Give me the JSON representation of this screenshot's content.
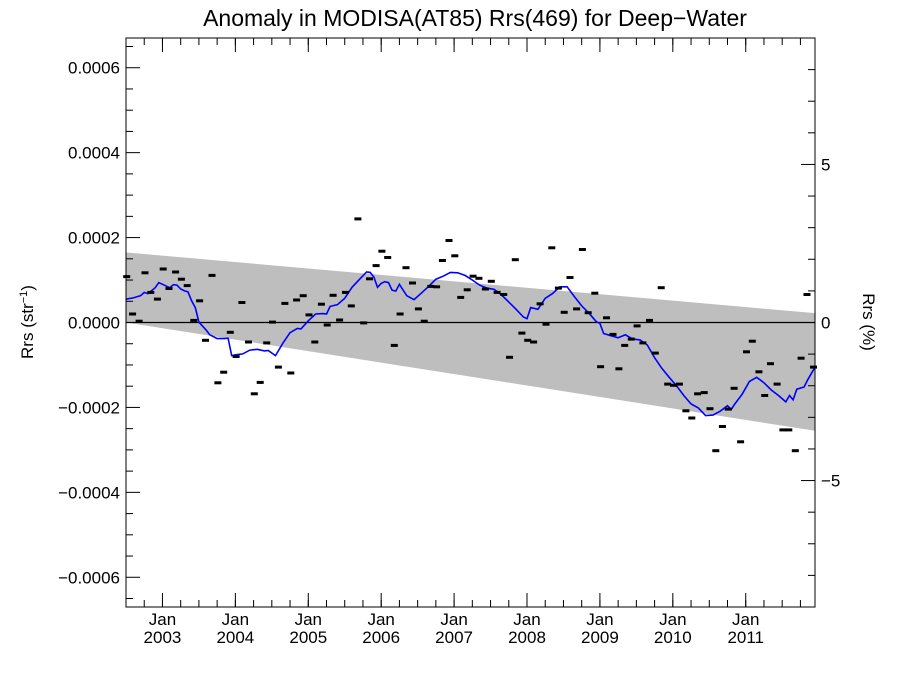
{
  "chart_data": {
    "type": "scatter",
    "title": "Anomaly in MODISA(AT85) Rrs(469) for Deep−Water",
    "ylabel": "Rrs (str⁻¹)",
    "y2label": "Rrs (%)",
    "xlabel": "",
    "xlim": [
      2002.5,
      2011.95
    ],
    "ylim": [
      -0.00067,
      0.00067
    ],
    "y2lim": [
      -9.0,
      9.0
    ],
    "grid": false,
    "legend": "none",
    "yticks": [
      -0.0006,
      -0.0004,
      -0.0002,
      0.0,
      0.0002,
      0.0004,
      0.0006
    ],
    "ytick_labels": [
      "−0.0006",
      "−0.0004",
      "−0.0002",
      "0.0000",
      "0.0002",
      "0.0004",
      "0.0006"
    ],
    "y2ticks": [
      -5,
      0,
      5
    ],
    "y2tick_labels": [
      "−5",
      "0",
      "5"
    ],
    "xticks": [
      {
        "x": 2003.0,
        "month": "Jan",
        "year": "2003"
      },
      {
        "x": 2004.0,
        "month": "Jan",
        "year": "2004"
      },
      {
        "x": 2005.0,
        "month": "Jan",
        "year": "2005"
      },
      {
        "x": 2006.0,
        "month": "Jan",
        "year": "2006"
      },
      {
        "x": 2007.0,
        "month": "Jan",
        "year": "2007"
      },
      {
        "x": 2008.0,
        "month": "Jan",
        "year": "2008"
      },
      {
        "x": 2009.0,
        "month": "Jan",
        "year": "2009"
      },
      {
        "x": 2010.0,
        "month": "Jan",
        "year": "2010"
      },
      {
        "x": 2011.0,
        "month": "Jan",
        "year": "2011"
      }
    ],
    "band": {
      "x": [
        2002.5,
        2011.95
      ],
      "upper": [
        0.000165,
        2.2e-05
      ],
      "lower": [
        0.0,
        -0.000255
      ]
    },
    "colors": {
      "band": "#bebebe",
      "smooth": "#0000ff",
      "points": "#000000",
      "zero_line": "#000000"
    },
    "monthly_anomaly": [
      {
        "x": 2002.51,
        "y": 0.000108
      },
      {
        "x": 2002.59,
        "y": 2e-05
      },
      {
        "x": 2002.68,
        "y": 3e-06
      },
      {
        "x": 2002.76,
        "y": 0.000117
      },
      {
        "x": 2002.84,
        "y": 7.1e-05
      },
      {
        "x": 2002.93,
        "y": 5.5e-05
      },
      {
        "x": 2003.01,
        "y": 0.000126
      },
      {
        "x": 2003.09,
        "y": 8e-05
      },
      {
        "x": 2003.18,
        "y": 0.000119
      },
      {
        "x": 2003.26,
        "y": 0.000102
      },
      {
        "x": 2003.34,
        "y": 8.7e-05
      },
      {
        "x": 2003.43,
        "y": 5e-06
      },
      {
        "x": 2003.51,
        "y": 5.1e-05
      },
      {
        "x": 2003.59,
        "y": -4.2e-05
      },
      {
        "x": 2003.68,
        "y": 0.000111
      },
      {
        "x": 2003.76,
        "y": -0.000142
      },
      {
        "x": 2003.84,
        "y": -0.000117
      },
      {
        "x": 2003.93,
        "y": -2.3e-05
      },
      {
        "x": 2004.01,
        "y": -8e-05
      },
      {
        "x": 2004.09,
        "y": 4.7e-05
      },
      {
        "x": 2004.18,
        "y": -4.6e-05
      },
      {
        "x": 2004.26,
        "y": -0.000168
      },
      {
        "x": 2004.34,
        "y": -0.000141
      },
      {
        "x": 2004.43,
        "y": -4.8e-05
      },
      {
        "x": 2004.51,
        "y": 1e-06
      },
      {
        "x": 2004.59,
        "y": -0.000105
      },
      {
        "x": 2004.68,
        "y": 4.5e-05
      },
      {
        "x": 2004.76,
        "y": -0.000119
      },
      {
        "x": 2004.84,
        "y": 5.3e-05
      },
      {
        "x": 2004.93,
        "y": 6.3e-05
      },
      {
        "x": 2005.01,
        "y": 1.8e-05
      },
      {
        "x": 2005.09,
        "y": -4.6e-05
      },
      {
        "x": 2005.18,
        "y": 4.3e-05
      },
      {
        "x": 2005.26,
        "y": -6e-06
      },
      {
        "x": 2005.34,
        "y": 6.4e-05
      },
      {
        "x": 2005.43,
        "y": 6e-06
      },
      {
        "x": 2005.51,
        "y": 7.1e-05
      },
      {
        "x": 2005.59,
        "y": 3.9e-05
      },
      {
        "x": 2005.68,
        "y": 0.000244
      },
      {
        "x": 2005.76,
        "y": -1e-06
      },
      {
        "x": 2005.84,
        "y": 0.000103
      },
      {
        "x": 2005.93,
        "y": 0.000134
      },
      {
        "x": 2006.01,
        "y": 0.000168
      },
      {
        "x": 2006.09,
        "y": 0.000153
      },
      {
        "x": 2006.18,
        "y": -5.4e-05
      },
      {
        "x": 2006.26,
        "y": 2e-05
      },
      {
        "x": 2006.34,
        "y": 0.000129
      },
      {
        "x": 2006.43,
        "y": 9.3e-05
      },
      {
        "x": 2006.51,
        "y": 3.2e-05
      },
      {
        "x": 2006.59,
        "y": 3e-06
      },
      {
        "x": 2006.68,
        "y": 8.5e-05
      },
      {
        "x": 2006.76,
        "y": 8.4e-05
      },
      {
        "x": 2006.84,
        "y": 0.000146
      },
      {
        "x": 2006.93,
        "y": 0.000193
      },
      {
        "x": 2007.01,
        "y": 0.000157
      },
      {
        "x": 2007.09,
        "y": 5.9e-05
      },
      {
        "x": 2007.18,
        "y": 7.7e-05
      },
      {
        "x": 2007.26,
        "y": 0.000109
      },
      {
        "x": 2007.34,
        "y": 0.000104
      },
      {
        "x": 2007.43,
        "y": 7.9e-05
      },
      {
        "x": 2007.51,
        "y": 9.7e-05
      },
      {
        "x": 2007.59,
        "y": 7.1e-05
      },
      {
        "x": 2007.68,
        "y": 6.6e-05
      },
      {
        "x": 2007.76,
        "y": -8.2e-05
      },
      {
        "x": 2007.84,
        "y": 0.000148
      },
      {
        "x": 2007.93,
        "y": -2.5e-05
      },
      {
        "x": 2008.01,
        "y": -4.2e-05
      },
      {
        "x": 2008.09,
        "y": -4.6e-05
      },
      {
        "x": 2008.18,
        "y": 4.4e-05
      },
      {
        "x": 2008.26,
        "y": -4e-06
      },
      {
        "x": 2008.34,
        "y": 0.000176
      },
      {
        "x": 2008.43,
        "y": 8.1e-05
      },
      {
        "x": 2008.51,
        "y": 2.4e-05
      },
      {
        "x": 2008.59,
        "y": 0.000106
      },
      {
        "x": 2008.68,
        "y": 3.2e-05
      },
      {
        "x": 2008.76,
        "y": 0.000172
      },
      {
        "x": 2008.84,
        "y": 2.3e-05
      },
      {
        "x": 2008.93,
        "y": 6.9e-05
      },
      {
        "x": 2009.01,
        "y": -0.000104
      },
      {
        "x": 2009.09,
        "y": 1.1e-05
      },
      {
        "x": 2009.18,
        "y": -2.8e-05
      },
      {
        "x": 2009.26,
        "y": -0.000109
      },
      {
        "x": 2009.34,
        "y": -5.4e-05
      },
      {
        "x": 2009.43,
        "y": -3.9e-05
      },
      {
        "x": 2009.51,
        "y": -8e-06
      },
      {
        "x": 2009.59,
        "y": -4.8e-05
      },
      {
        "x": 2009.68,
        "y": 5e-06
      },
      {
        "x": 2009.76,
        "y": -7.2e-05
      },
      {
        "x": 2009.84,
        "y": 8.2e-05
      },
      {
        "x": 2009.93,
        "y": -0.000145
      },
      {
        "x": 2010.01,
        "y": -0.000148
      },
      {
        "x": 2010.09,
        "y": -0.000145
      },
      {
        "x": 2010.18,
        "y": -0.000208
      },
      {
        "x": 2010.26,
        "y": -0.000225
      },
      {
        "x": 2010.34,
        "y": -0.000168
      },
      {
        "x": 2010.43,
        "y": -0.000165
      },
      {
        "x": 2010.51,
        "y": -0.000203
      },
      {
        "x": 2010.59,
        "y": -0.000302
      },
      {
        "x": 2010.68,
        "y": -0.000245
      },
      {
        "x": 2010.76,
        "y": -0.000204
      },
      {
        "x": 2010.84,
        "y": -0.000155
      },
      {
        "x": 2010.93,
        "y": -0.000281
      },
      {
        "x": 2011.01,
        "y": -6.9e-05
      },
      {
        "x": 2011.09,
        "y": -4.4e-05
      },
      {
        "x": 2011.18,
        "y": -0.000116
      },
      {
        "x": 2011.26,
        "y": -0.000172
      },
      {
        "x": 2011.34,
        "y": -9.7e-05
      },
      {
        "x": 2011.43,
        "y": -0.000145
      },
      {
        "x": 2011.51,
        "y": -0.000253
      },
      {
        "x": 2011.59,
        "y": -0.000253
      },
      {
        "x": 2011.68,
        "y": -0.000302
      },
      {
        "x": 2011.76,
        "y": -8.4e-05
      },
      {
        "x": 2011.84,
        "y": 6.6e-05
      },
      {
        "x": 2011.93,
        "y": -0.000105
      }
    ],
    "smoothed": [
      {
        "x": 2002.5,
        "y": 5.5e-05
      },
      {
        "x": 2002.6,
        "y": 5.8e-05
      },
      {
        "x": 2002.7,
        "y": 6.3e-05
      },
      {
        "x": 2002.75,
        "y": 7.1e-05
      },
      {
        "x": 2002.8,
        "y": 6.8e-05
      },
      {
        "x": 2002.9,
        "y": 8.2e-05
      },
      {
        "x": 2002.95,
        "y": 9.4e-05
      },
      {
        "x": 2003.0,
        "y": 9e-05
      },
      {
        "x": 2003.1,
        "y": 8.2e-05
      },
      {
        "x": 2003.15,
        "y": 8.9e-05
      },
      {
        "x": 2003.2,
        "y": 8.8e-05
      },
      {
        "x": 2003.25,
        "y": 7.9e-05
      },
      {
        "x": 2003.3,
        "y": 7.5e-05
      },
      {
        "x": 2003.35,
        "y": 7.2e-05
      },
      {
        "x": 2003.4,
        "y": 5.1e-05
      },
      {
        "x": 2003.45,
        "y": 3.5e-05
      },
      {
        "x": 2003.5,
        "y": 1e-06
      },
      {
        "x": 2003.6,
        "y": -1.8e-05
      },
      {
        "x": 2003.65,
        "y": -2.9e-05
      },
      {
        "x": 2003.75,
        "y": -3.8e-05
      },
      {
        "x": 2003.85,
        "y": -3.8e-05
      },
      {
        "x": 2003.9,
        "y": -3.7e-05
      },
      {
        "x": 2003.95,
        "y": -7.8e-05
      },
      {
        "x": 2004.0,
        "y": -7.6e-05
      },
      {
        "x": 2004.1,
        "y": -7.4e-05
      },
      {
        "x": 2004.2,
        "y": -6.5e-05
      },
      {
        "x": 2004.3,
        "y": -6.3e-05
      },
      {
        "x": 2004.4,
        "y": -6.7e-05
      },
      {
        "x": 2004.45,
        "y": -6.6e-05
      },
      {
        "x": 2004.55,
        "y": -7.8e-05
      },
      {
        "x": 2004.65,
        "y": -4.9e-05
      },
      {
        "x": 2004.75,
        "y": -2.4e-05
      },
      {
        "x": 2004.85,
        "y": -1.4e-05
      },
      {
        "x": 2004.9,
        "y": -1.5e-05
      },
      {
        "x": 2005.0,
        "y": 4e-06
      },
      {
        "x": 2005.1,
        "y": 2e-05
      },
      {
        "x": 2005.2,
        "y": 2.1e-05
      },
      {
        "x": 2005.25,
        "y": 2e-05
      },
      {
        "x": 2005.3,
        "y": 3.8e-05
      },
      {
        "x": 2005.4,
        "y": 4.2e-05
      },
      {
        "x": 2005.5,
        "y": 5.7e-05
      },
      {
        "x": 2005.6,
        "y": 8.3e-05
      },
      {
        "x": 2005.7,
        "y": 0.000101
      },
      {
        "x": 2005.8,
        "y": 0.000119
      },
      {
        "x": 2005.85,
        "y": 0.000118
      },
      {
        "x": 2005.9,
        "y": 0.000107
      },
      {
        "x": 2005.95,
        "y": 8.3e-05
      },
      {
        "x": 2006.0,
        "y": 9.2e-05
      },
      {
        "x": 2006.05,
        "y": 9.6e-05
      },
      {
        "x": 2006.1,
        "y": 9.4e-05
      },
      {
        "x": 2006.15,
        "y": 7.6e-05
      },
      {
        "x": 2006.2,
        "y": 7.4e-05
      },
      {
        "x": 2006.25,
        "y": 9e-05
      },
      {
        "x": 2006.35,
        "y": 6.3e-05
      },
      {
        "x": 2006.45,
        "y": 5.4e-05
      },
      {
        "x": 2006.55,
        "y": 6.9e-05
      },
      {
        "x": 2006.65,
        "y": 8.5e-05
      },
      {
        "x": 2006.75,
        "y": 0.000102
      },
      {
        "x": 2006.85,
        "y": 0.000109
      },
      {
        "x": 2006.95,
        "y": 0.000118
      },
      {
        "x": 2007.05,
        "y": 0.000117
      },
      {
        "x": 2007.15,
        "y": 0.000111
      },
      {
        "x": 2007.25,
        "y": 0.0001
      },
      {
        "x": 2007.35,
        "y": 8.8e-05
      },
      {
        "x": 2007.45,
        "y": 8.1e-05
      },
      {
        "x": 2007.55,
        "y": 7.8e-05
      },
      {
        "x": 2007.65,
        "y": 6.5e-05
      },
      {
        "x": 2007.75,
        "y": 4.8e-05
      },
      {
        "x": 2007.85,
        "y": 3.1e-05
      },
      {
        "x": 2007.95,
        "y": 1.3e-05
      },
      {
        "x": 2008.0,
        "y": 9e-06
      },
      {
        "x": 2008.05,
        "y": 3.5e-05
      },
      {
        "x": 2008.15,
        "y": 3.1e-05
      },
      {
        "x": 2008.25,
        "y": 5.7e-05
      },
      {
        "x": 2008.35,
        "y": 6.8e-05
      },
      {
        "x": 2008.45,
        "y": 8.4e-05
      },
      {
        "x": 2008.55,
        "y": 8.4e-05
      },
      {
        "x": 2008.65,
        "y": 6.1e-05
      },
      {
        "x": 2008.75,
        "y": 3.9e-05
      },
      {
        "x": 2008.85,
        "y": 2.2e-05
      },
      {
        "x": 2008.95,
        "y": 2e-06
      },
      {
        "x": 2009.0,
        "y": -2e-06
      },
      {
        "x": 2009.05,
        "y": -2.6e-05
      },
      {
        "x": 2009.15,
        "y": -3.1e-05
      },
      {
        "x": 2009.25,
        "y": -3.6e-05
      },
      {
        "x": 2009.35,
        "y": -2.9e-05
      },
      {
        "x": 2009.45,
        "y": -3.9e-05
      },
      {
        "x": 2009.55,
        "y": -4.1e-05
      },
      {
        "x": 2009.65,
        "y": -5.3e-05
      },
      {
        "x": 2009.75,
        "y": -8.3e-05
      },
      {
        "x": 2009.85,
        "y": -0.000108
      },
      {
        "x": 2009.95,
        "y": -0.000129
      },
      {
        "x": 2010.05,
        "y": -0.000149
      },
      {
        "x": 2010.15,
        "y": -0.000172
      },
      {
        "x": 2010.25,
        "y": -0.000192
      },
      {
        "x": 2010.35,
        "y": -0.000201
      },
      {
        "x": 2010.45,
        "y": -0.000219
      },
      {
        "x": 2010.55,
        "y": -0.000218
      },
      {
        "x": 2010.65,
        "y": -0.000209
      },
      {
        "x": 2010.75,
        "y": -0.000196
      },
      {
        "x": 2010.8,
        "y": -0.000205
      },
      {
        "x": 2010.85,
        "y": -0.000192
      },
      {
        "x": 2010.95,
        "y": -0.000169
      },
      {
        "x": 2011.05,
        "y": -0.000139
      },
      {
        "x": 2011.15,
        "y": -0.000129
      },
      {
        "x": 2011.25,
        "y": -0.000142
      },
      {
        "x": 2011.35,
        "y": -0.000159
      },
      {
        "x": 2011.45,
        "y": -0.000172
      },
      {
        "x": 2011.55,
        "y": -0.000187
      },
      {
        "x": 2011.6,
        "y": -0.000172
      },
      {
        "x": 2011.65,
        "y": -0.000182
      },
      {
        "x": 2011.7,
        "y": -0.000157
      },
      {
        "x": 2011.8,
        "y": -0.000152
      },
      {
        "x": 2011.85,
        "y": -0.000135
      },
      {
        "x": 2011.95,
        "y": -0.000105
      }
    ]
  }
}
